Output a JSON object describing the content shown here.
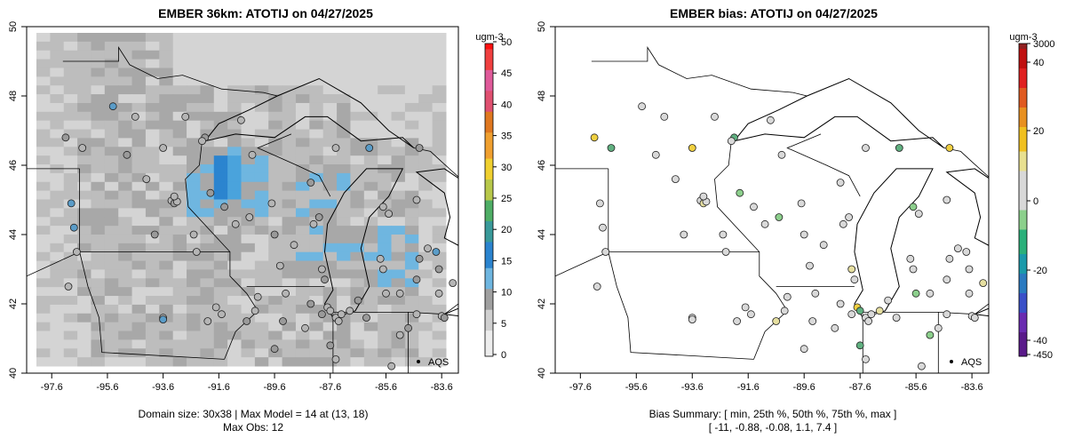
{
  "chart_data": [
    {
      "type": "heatmap",
      "title": "EMBER 36km: ATOTIJ on 04/27/2025",
      "x_ticks": [
        "-97.6",
        "-95.6",
        "-93.6",
        "-91.6",
        "-89.6",
        "-87.6",
        "-85.6",
        "-83.6"
      ],
      "y_ticks": [
        "40",
        "42",
        "44",
        "46",
        "48",
        "50"
      ],
      "xlim": [
        -98.5,
        -83.0
      ],
      "ylim": [
        40,
        50
      ],
      "colorbar": {
        "unit": "ugm-3",
        "ticks": [
          "0",
          "5",
          "10",
          "15",
          "20",
          "25",
          "30",
          "35",
          "40",
          "45",
          "50"
        ],
        "range": [
          0,
          50
        ]
      },
      "annotation": "AQS",
      "captions": [
        "Domain size: 30x38 | Max Model = 14 at (13, 18)",
        "Max Obs: 12"
      ]
    },
    {
      "type": "scatter",
      "title": "EMBER bias: ATOTIJ on 04/27/2025",
      "x_ticks": [
        "-97.6",
        "-95.6",
        "-93.6",
        "-91.6",
        "-89.6",
        "-87.6",
        "-85.6",
        "-83.6"
      ],
      "y_ticks": [
        "40",
        "42",
        "44",
        "46",
        "48",
        "50"
      ],
      "xlim": [
        -98.5,
        -83.0
      ],
      "ylim": [
        40,
        50
      ],
      "colorbar": {
        "unit": "ugm-3",
        "ticks": [
          "3000",
          "40",
          "20",
          "0",
          "-20",
          "-40",
          "-450"
        ]
      },
      "annotation": "AQS",
      "captions": [
        "Bias Summary: [ min, 25th %, 50th %, 75th %, max ]",
        "[ -11,   -0.88,   -0.08,   1.1,   7.4 ]"
      ]
    }
  ],
  "colors": {
    "gray_light": "#d4d4d4",
    "gray_mid": "#bdbdbd",
    "gray_dark": "#a8a8a8",
    "blue_light": "#6fb6e0",
    "blue_mid": "#4aa3dc",
    "blue_dark": "#2b84cf"
  }
}
